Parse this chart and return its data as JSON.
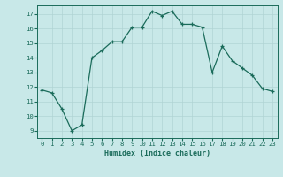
{
  "x": [
    0,
    1,
    2,
    3,
    4,
    5,
    6,
    7,
    8,
    9,
    10,
    11,
    12,
    13,
    14,
    15,
    16,
    17,
    18,
    19,
    20,
    21,
    22,
    23
  ],
  "y": [
    11.8,
    11.6,
    10.5,
    9.0,
    9.4,
    14.0,
    14.5,
    15.1,
    15.1,
    16.1,
    16.1,
    17.2,
    16.9,
    17.2,
    16.3,
    16.3,
    16.1,
    13.0,
    14.8,
    13.8,
    13.3,
    12.8,
    11.9,
    11.7
  ],
  "xlabel": "Humidex (Indice chaleur)",
  "ylim": [
    8.5,
    17.6
  ],
  "xlim": [
    -0.5,
    23.5
  ],
  "yticks": [
    9,
    10,
    11,
    12,
    13,
    14,
    15,
    16,
    17
  ],
  "xticks": [
    0,
    1,
    2,
    3,
    4,
    5,
    6,
    7,
    8,
    9,
    10,
    11,
    12,
    13,
    14,
    15,
    16,
    17,
    18,
    19,
    20,
    21,
    22,
    23
  ],
  "line_color": "#1a6b5a",
  "marker_color": "#1a6b5a",
  "bg_color": "#c8e8e8",
  "grid_color": "#b0d4d4",
  "xlabel_color": "#1a6b5a"
}
